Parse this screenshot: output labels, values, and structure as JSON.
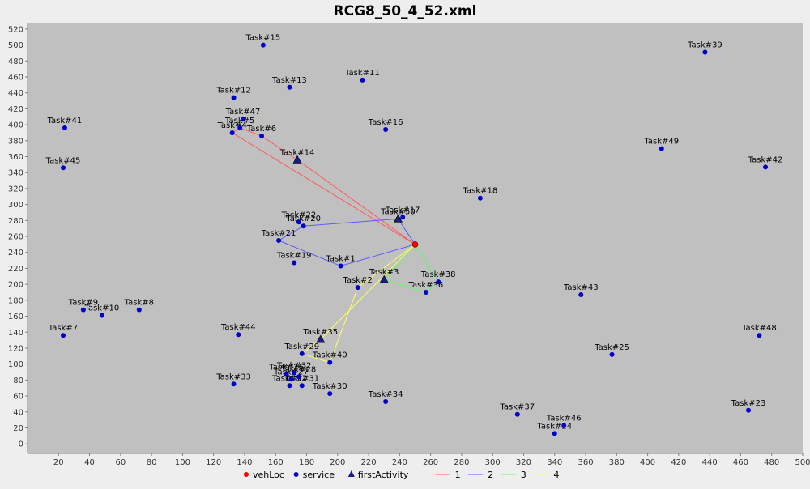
{
  "chart_data": {
    "type": "scatter",
    "title": "RCG8_50_4_52.xml",
    "xlabel": "",
    "ylabel": "",
    "xlim": [
      0,
      500
    ],
    "ylim": [
      -12,
      528
    ],
    "x_ticks": [
      20,
      40,
      60,
      80,
      100,
      120,
      140,
      160,
      180,
      200,
      220,
      240,
      260,
      280,
      300,
      320,
      340,
      360,
      380,
      400,
      420,
      440,
      460,
      480,
      500
    ],
    "y_ticks": [
      0,
      20,
      40,
      60,
      80,
      100,
      120,
      140,
      160,
      180,
      200,
      220,
      240,
      260,
      280,
      300,
      320,
      340,
      360,
      380,
      400,
      420,
      440,
      460,
      480,
      500,
      520
    ],
    "grid": false,
    "legend_position": "bottom-center",
    "colors": {
      "plot_background": "#c0c0c0",
      "page_background": "#eeeeee",
      "vehLoc": "#ff0000",
      "service": "#0000cc",
      "firstActivity": "#1a1a8c",
      "route_1": "#ff5a5a",
      "route_2": "#5a5aff",
      "route_3": "#5aff5a",
      "route_4": "#ffff5a"
    },
    "legend": [
      {
        "label": "vehLoc",
        "marker": "circle",
        "color": "#ff0000"
      },
      {
        "label": "service",
        "marker": "circle",
        "color": "#0000cc"
      },
      {
        "label": "firstActivity",
        "marker": "triangle",
        "color": "#1a1a8c"
      },
      {
        "label": "1",
        "marker": "line",
        "color": "#ff5a5a"
      },
      {
        "label": "2",
        "marker": "line",
        "color": "#5a5aff"
      },
      {
        "label": "3",
        "marker": "line",
        "color": "#5aff5a"
      },
      {
        "label": "4",
        "marker": "line",
        "color": "#ffff5a"
      }
    ],
    "vehLoc": {
      "x": 250,
      "y": 250
    },
    "services": [
      {
        "label": "Task#1",
        "x": 202,
        "y": 223
      },
      {
        "label": "Task#2",
        "x": 213,
        "y": 196
      },
      {
        "label": "Task#3",
        "x": 230,
        "y": 206
      },
      {
        "label": "Task#4",
        "x": 132,
        "y": 390
      },
      {
        "label": "Task#5",
        "x": 137,
        "y": 396
      },
      {
        "label": "Task#6",
        "x": 151,
        "y": 386
      },
      {
        "label": "Task#7",
        "x": 23,
        "y": 136
      },
      {
        "label": "Task#8",
        "x": 72,
        "y": 168
      },
      {
        "label": "Task#9",
        "x": 36,
        "y": 168
      },
      {
        "label": "Task#10",
        "x": 48,
        "y": 161
      },
      {
        "label": "Task#11",
        "x": 216,
        "y": 456
      },
      {
        "label": "Task#12",
        "x": 133,
        "y": 434
      },
      {
        "label": "Task#13",
        "x": 169,
        "y": 447
      },
      {
        "label": "Task#14",
        "x": 174,
        "y": 356
      },
      {
        "label": "Task#15",
        "x": 152,
        "y": 500
      },
      {
        "label": "Task#16",
        "x": 231,
        "y": 394
      },
      {
        "label": "Task#17",
        "x": 242,
        "y": 284
      },
      {
        "label": "Task#18",
        "x": 292,
        "y": 308
      },
      {
        "label": "Task#19",
        "x": 172,
        "y": 227
      },
      {
        "label": "Task#20",
        "x": 178,
        "y": 273
      },
      {
        "label": "Task#21",
        "x": 162,
        "y": 255
      },
      {
        "label": "Task#22",
        "x": 175,
        "y": 278
      },
      {
        "label": "Task#23",
        "x": 465,
        "y": 42
      },
      {
        "label": "Task#24",
        "x": 340,
        "y": 13
      },
      {
        "label": "Task#25",
        "x": 377,
        "y": 112
      },
      {
        "label": "Task#26",
        "x": 167,
        "y": 87
      },
      {
        "label": "Task#27",
        "x": 170,
        "y": 81
      },
      {
        "label": "Task#28",
        "x": 175,
        "y": 84
      },
      {
        "label": "Task#29",
        "x": 177,
        "y": 113
      },
      {
        "label": "Task#30",
        "x": 195,
        "y": 63
      },
      {
        "label": "Task#31",
        "x": 177,
        "y": 73
      },
      {
        "label": "Task#32",
        "x": 172,
        "y": 89
      },
      {
        "label": "Task#33",
        "x": 133,
        "y": 75
      },
      {
        "label": "Task#34",
        "x": 231,
        "y": 53
      },
      {
        "label": "Task#35",
        "x": 189,
        "y": 131
      },
      {
        "label": "Task#36",
        "x": 257,
        "y": 190
      },
      {
        "label": "Task#37",
        "x": 316,
        "y": 37
      },
      {
        "label": "Task#38",
        "x": 265,
        "y": 203
      },
      {
        "label": "Task#39",
        "x": 437,
        "y": 491
      },
      {
        "label": "Task#40",
        "x": 195,
        "y": 102
      },
      {
        "label": "Task#41",
        "x": 24,
        "y": 396
      },
      {
        "label": "Task#42",
        "x": 476,
        "y": 347
      },
      {
        "label": "Task#43",
        "x": 357,
        "y": 187
      },
      {
        "label": "Task#44",
        "x": 136,
        "y": 137
      },
      {
        "label": "Task#45",
        "x": 23,
        "y": 346
      },
      {
        "label": "Task#46",
        "x": 346,
        "y": 23
      },
      {
        "label": "Task#47",
        "x": 139,
        "y": 407
      },
      {
        "label": "Task#48",
        "x": 472,
        "y": 136
      },
      {
        "label": "Task#49",
        "x": 409,
        "y": 370
      },
      {
        "label": "Task#50",
        "x": 239,
        "y": 282
      },
      {
        "label": "Task#52",
        "x": 169,
        "y": 73
      }
    ],
    "first_activities": [
      {
        "x": 174,
        "y": 356
      },
      {
        "x": 239,
        "y": 282
      },
      {
        "x": 230,
        "y": 206
      },
      {
        "x": 189,
        "y": 131
      }
    ],
    "routes": [
      {
        "name": "1",
        "points": [
          [
            250,
            250
          ],
          [
            174,
            356
          ],
          [
            151,
            386
          ],
          [
            137,
            396
          ],
          [
            132,
            390
          ],
          [
            250,
            250
          ]
        ]
      },
      {
        "name": "2",
        "points": [
          [
            250,
            250
          ],
          [
            239,
            282
          ],
          [
            178,
            273
          ],
          [
            162,
            255
          ],
          [
            202,
            223
          ],
          [
            250,
            250
          ]
        ]
      },
      {
        "name": "3",
        "points": [
          [
            250,
            250
          ],
          [
            230,
            206
          ],
          [
            257,
            190
          ],
          [
            265,
            203
          ],
          [
            250,
            250
          ]
        ]
      },
      {
        "name": "4",
        "points": [
          [
            250,
            250
          ],
          [
            189,
            131
          ],
          [
            177,
            113
          ],
          [
            195,
            102
          ],
          [
            213,
            196
          ],
          [
            250,
            250
          ]
        ]
      }
    ]
  }
}
